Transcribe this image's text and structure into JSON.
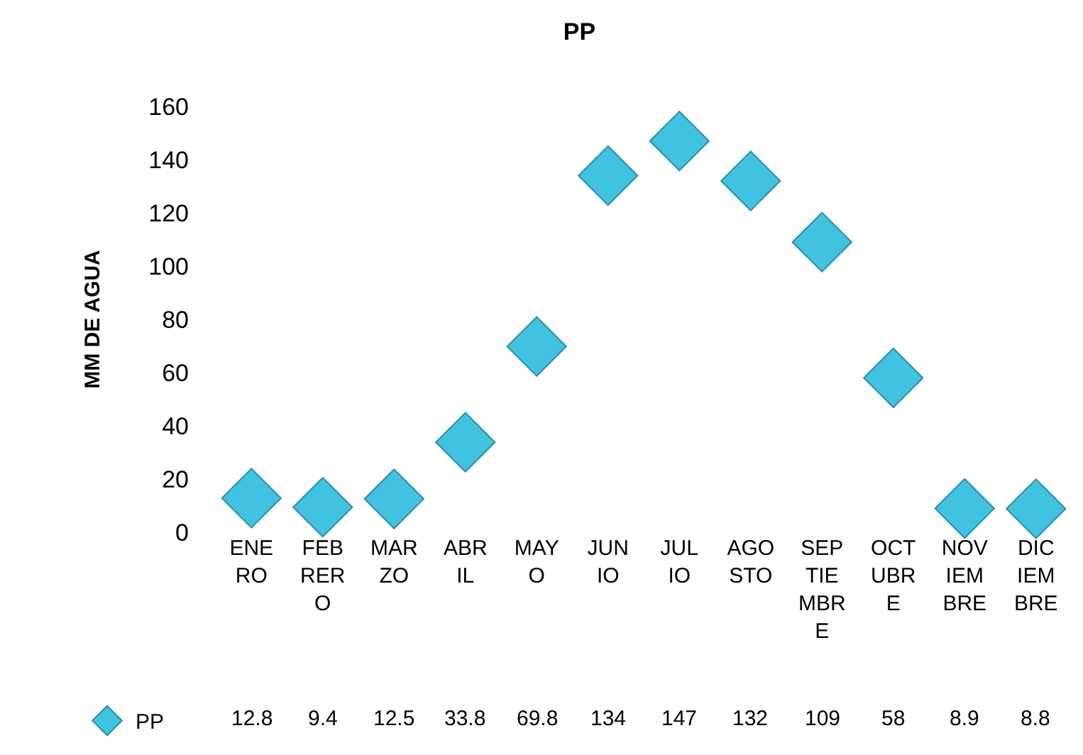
{
  "chart_data": {
    "type": "scatter",
    "title": "PP",
    "ylabel": "MM DE AGUA",
    "categories": [
      "ENERO",
      "FEBRERO",
      "MARZO",
      "ABRIL",
      "MAYO",
      "JUNIO",
      "JULIO",
      "AGOSTO",
      "SEPTIEMBRE",
      "OCTUBRE",
      "NOVIEMBRE",
      "DICIEMBRE"
    ],
    "series": [
      {
        "name": "PP",
        "color": "#3fc3e0",
        "values": [
          12.8,
          9.4,
          12.5,
          33.8,
          69.8,
          134,
          147,
          132,
          109,
          58,
          8.9,
          8.8
        ]
      }
    ],
    "ylim": [
      0,
      160
    ],
    "yticks": [
      0,
      20,
      40,
      60,
      80,
      100,
      120,
      140,
      160
    ],
    "marker": "diamond",
    "grid": false,
    "legend": "bottom left",
    "data_labels": true
  }
}
